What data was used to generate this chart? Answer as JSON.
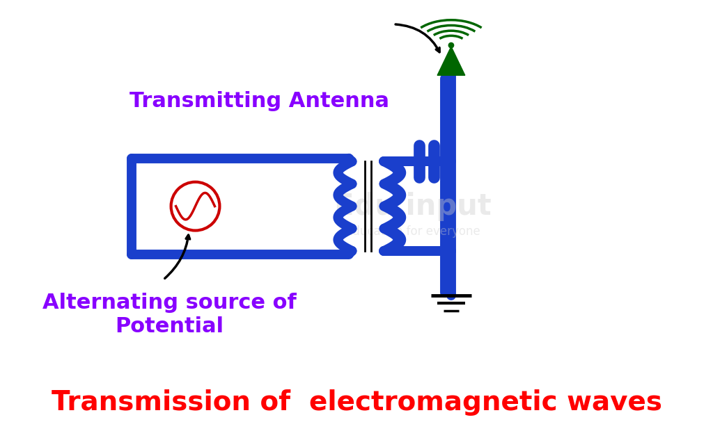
{
  "title": "Transmission of  electromagnetic waves",
  "title_color": "#ff0000",
  "title_fontsize": 28,
  "label_antenna": "Transmitting Antenna",
  "label_antenna_color": "#8800ff",
  "label_antenna_fontsize": 22,
  "label_source": "Alternating source of\nPotential",
  "label_source_color": "#8800ff",
  "label_source_fontsize": 22,
  "blue_color": "#1a3fcc",
  "green_color": "#006600",
  "black_color": "#000000",
  "red_color": "#cc0000",
  "bg_color": "#ffffff",
  "circuit_lw": 10,
  "coil_lw": 10
}
